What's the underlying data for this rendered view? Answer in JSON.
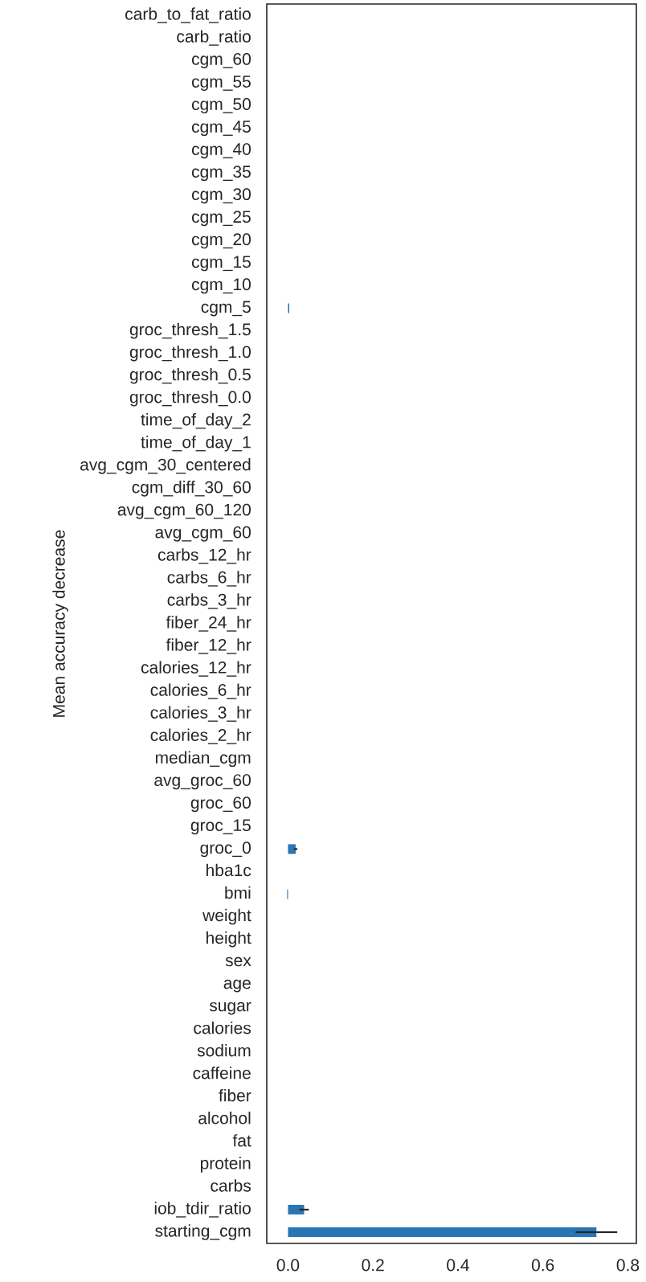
{
  "chart_data": {
    "type": "bar",
    "orientation": "horizontal",
    "ylabel": "Mean accuracy decrease",
    "categories": [
      "carb_to_fat_ratio",
      "carb_ratio",
      "cgm_60",
      "cgm_55",
      "cgm_50",
      "cgm_45",
      "cgm_40",
      "cgm_35",
      "cgm_30",
      "cgm_25",
      "cgm_20",
      "cgm_15",
      "cgm_10",
      "cgm_5",
      "groc_thresh_1.5",
      "groc_thresh_1.0",
      "groc_thresh_0.5",
      "groc_thresh_0.0",
      "time_of_day_2",
      "time_of_day_1",
      "avg_cgm_30_centered",
      "cgm_diff_30_60",
      "avg_cgm_60_120",
      "avg_cgm_60",
      "carbs_12_hr",
      "carbs_6_hr",
      "carbs_3_hr",
      "fiber_24_hr",
      "fiber_12_hr",
      "calories_12_hr",
      "calories_6_hr",
      "calories_3_hr",
      "calories_2_hr",
      "median_cgm",
      "avg_groc_60",
      "groc_60",
      "groc_15",
      "groc_0",
      "hba1c",
      "bmi",
      "weight",
      "height",
      "sex",
      "age",
      "sugar",
      "calories",
      "sodium",
      "caffeine",
      "fiber",
      "alcohol",
      "fat",
      "protein",
      "carbs",
      "iob_tdir_ratio",
      "starting_cgm"
    ],
    "values": [
      0,
      0,
      0,
      0,
      0,
      0,
      0,
      0,
      0,
      0,
      0,
      0,
      0,
      0.003,
      0,
      0,
      0,
      0,
      0,
      0,
      0,
      0,
      0,
      0,
      0,
      0,
      0,
      0,
      0,
      0,
      0,
      0,
      0,
      0,
      0,
      0,
      0,
      0.018,
      0,
      -0.002,
      0,
      0,
      0,
      0,
      0,
      0,
      0,
      0,
      0,
      0,
      0,
      0,
      0,
      0.038,
      0.726
    ],
    "errors": [
      null,
      null,
      null,
      null,
      null,
      null,
      null,
      null,
      null,
      null,
      null,
      null,
      null,
      null,
      null,
      null,
      null,
      null,
      null,
      null,
      null,
      null,
      null,
      null,
      null,
      null,
      null,
      null,
      null,
      null,
      null,
      null,
      null,
      null,
      null,
      null,
      null,
      0.004,
      null,
      null,
      null,
      null,
      null,
      null,
      null,
      null,
      null,
      null,
      null,
      null,
      null,
      null,
      null,
      0.011,
      0.049
    ],
    "color": "#2a75b3",
    "xlim": [
      -0.05,
      0.82
    ],
    "xticks": [
      {
        "value": 0,
        "label": "0.0"
      },
      {
        "value": 0.2,
        "label": "0.2"
      },
      0.4,
      0.6,
      0.8
    ],
    "grid": false
  }
}
